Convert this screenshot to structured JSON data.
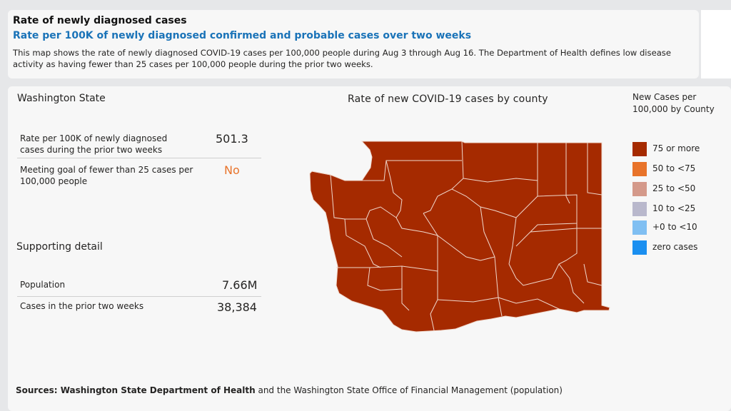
{
  "header": {
    "title": "Rate of newly diagnosed cases",
    "subtitle": "Rate per 100K of newly diagnosed confirmed and probable cases over two weeks",
    "description": "This map shows the rate of newly diagnosed COVID-19 cases per 100,000 people during Aug 3 through Aug 16. The Department of Health defines low disease activity as having fewer than 25 cases per 100,000 people during the prior two weeks."
  },
  "state_panel": {
    "title": "Washington State",
    "rate_label": "Rate per 100K of newly diagnosed cases during the prior two weeks",
    "rate_value": "501.3",
    "goal_label": "Meeting goal of fewer than 25 cases per 100,000 people",
    "goal_value": "No",
    "goal_color": "#e8732a"
  },
  "supporting": {
    "title": "Supporting detail",
    "population_label": "Population",
    "population_value": "7.66M",
    "cases_label": "Cases in the prior two weeks",
    "cases_value": "38,384"
  },
  "map": {
    "title": "Rate of new COVID-19 cases by county",
    "fill_color": "#a52a00",
    "border_color": "#f0d8cc"
  },
  "legend": {
    "title_line1": "New Cases per",
    "title_line2": "100,000 by County",
    "items": [
      {
        "label": "75 or more",
        "color": "#a52a00"
      },
      {
        "label": "50 to <75",
        "color": "#e8732a"
      },
      {
        "label": "25 to <50",
        "color": "#d4998a"
      },
      {
        "label": "10 to <25",
        "color": "#b9b8cc"
      },
      {
        "label": "+0 to <10",
        "color": "#80bff2"
      },
      {
        "label": "zero cases",
        "color": "#1a8ff0"
      }
    ]
  },
  "sources": {
    "prefix": "Sources: Washington State Department of Health",
    "suffix": " and the Washington State Office of Financial Management (population)"
  }
}
